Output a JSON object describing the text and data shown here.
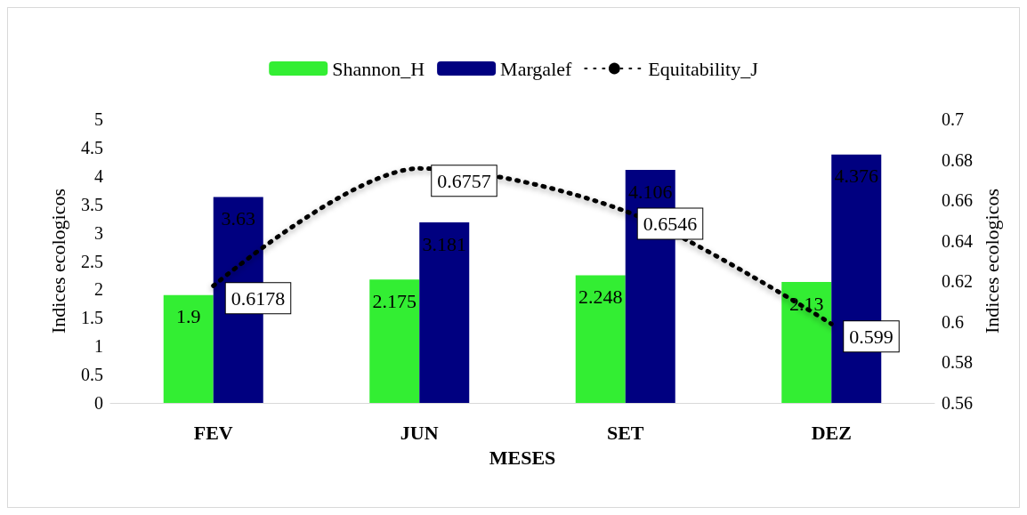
{
  "chart_data": {
    "type": "bar",
    "xlabel": "MESES",
    "ylabel": "Indices ecologicos",
    "y2label": "Indices ecologicos",
    "categories": [
      "FEV",
      "JUN",
      "SET",
      "DEZ"
    ],
    "series": [
      {
        "name": "Shannon_H",
        "color": "#33ee33",
        "values": [
          1.9,
          2.175,
          2.248,
          2.13
        ]
      },
      {
        "name": "Margalef",
        "color": "#000080",
        "values": [
          3.63,
          3.181,
          4.106,
          4.376
        ]
      },
      {
        "name": "Equitability_J",
        "type": "line",
        "axis": "y2",
        "color": "#000000",
        "line_style": "dotted",
        "marker": "none",
        "values": [
          0.6178,
          0.6757,
          0.6546,
          0.599
        ]
      }
    ],
    "ylim": [
      0,
      5
    ],
    "yticks": [
      0,
      0.5,
      1,
      1.5,
      2,
      2.5,
      3,
      3.5,
      4,
      4.5,
      5
    ],
    "y2lim": [
      0.56,
      0.7
    ],
    "y2ticks": [
      0.56,
      0.58,
      0.6,
      0.62,
      0.64,
      0.66,
      0.68,
      0.7
    ],
    "data_labels": true,
    "grid": false,
    "legend": "top"
  }
}
